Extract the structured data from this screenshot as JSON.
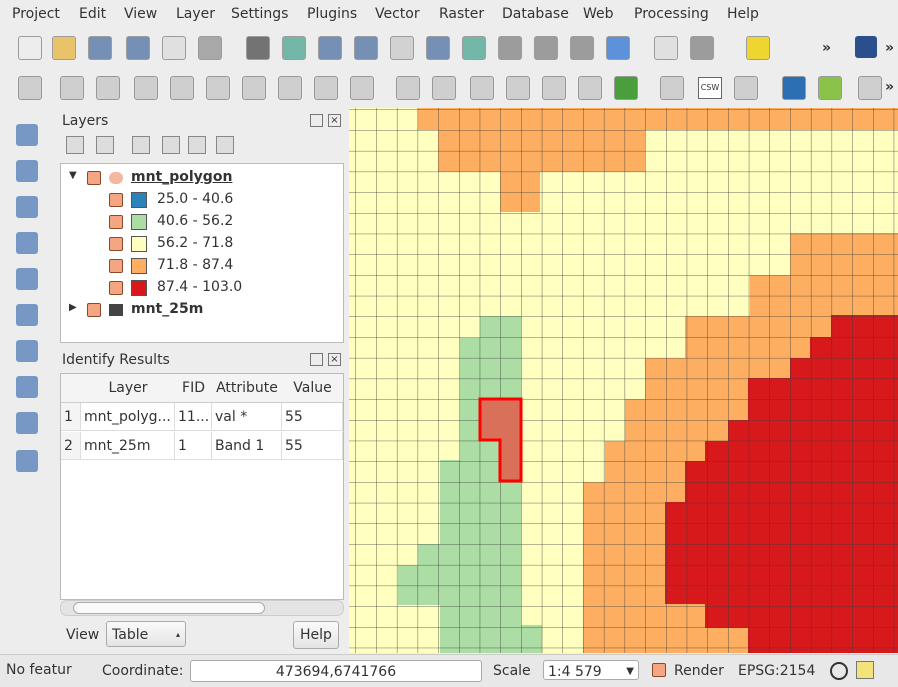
{
  "menu": [
    "Project",
    "Edit",
    "View",
    "Layer",
    "Settings",
    "Plugins",
    "Vector",
    "Raster",
    "Database",
    "Web",
    "Processing",
    "Help"
  ],
  "toolbar": {
    "overflow_1": "»",
    "overflow_2": "»",
    "overflow_3": "»",
    "csw": "CSW"
  },
  "layers_panel": {
    "title": "Layers",
    "layers": [
      {
        "name": "mnt_polygon",
        "classes": [
          {
            "label": "25.0 - 40.6",
            "color": "#2b83ba"
          },
          {
            "label": "40.6 - 56.2",
            "color": "#abdda4"
          },
          {
            "label": "56.2 - 71.8",
            "color": "#ffffbf"
          },
          {
            "label": "71.8 - 87.4",
            "color": "#fdae61"
          },
          {
            "label": "87.4 - 103.0",
            "color": "#d7191c"
          }
        ]
      },
      {
        "name": "mnt_25m"
      }
    ]
  },
  "identify_panel": {
    "title": "Identify Results",
    "columns": [
      "Layer",
      "FID",
      "Attribute",
      "Value"
    ],
    "rows": [
      [
        "1",
        "mnt_polyg...",
        "11...",
        "val *",
        "55"
      ],
      [
        "2",
        "mnt_25m",
        "1",
        "Band 1",
        "55"
      ]
    ],
    "view_label": "View",
    "view_select": "Table",
    "help_button": "Help"
  },
  "status_bar": {
    "features": "No featur",
    "coordinate_label": "Coordinate:",
    "coordinate": "473694,6741766",
    "scale_label": "Scale",
    "scale": "1:4 579",
    "render": "Render",
    "crs": "EPSG:2154"
  }
}
